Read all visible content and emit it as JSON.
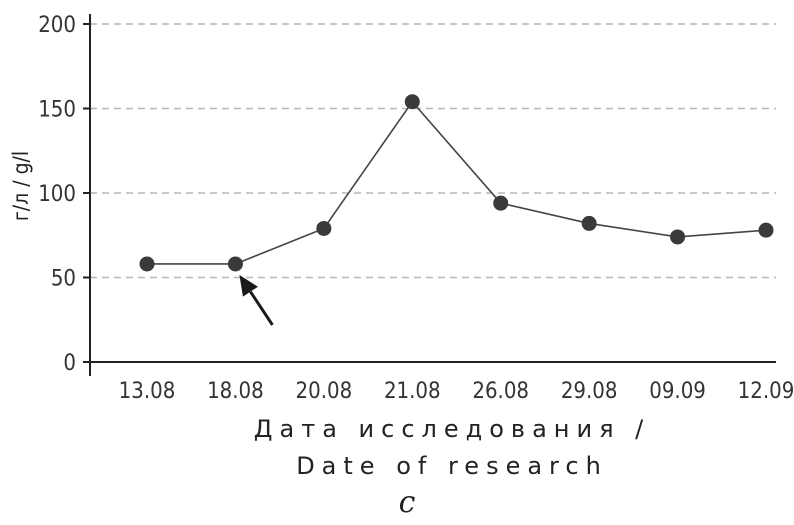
{
  "chart_data": {
    "type": "line",
    "panel_label": "c",
    "ylabel": "г/л / g/l",
    "xlabel_line1": "Дата исследования /",
    "xlabel_line2": "Date of research",
    "ylim": [
      0,
      200
    ],
    "yticks": [
      0,
      50,
      100,
      150,
      200
    ],
    "grid": "horizontal dashed",
    "categories": [
      "13.08",
      "18.08",
      "20.08",
      "21.08",
      "26.08",
      "29.08",
      "09.09",
      "12.09"
    ],
    "series": [
      {
        "values": [
          58,
          58,
          79,
          154,
          94,
          82,
          74,
          78
        ]
      }
    ],
    "annotation": {
      "type": "arrow",
      "points_to_category": "18.08"
    },
    "colors": {
      "line": "#444444",
      "marker": "#3a3a3a",
      "grid": "#b5b5b5",
      "axis": "#222222"
    }
  }
}
